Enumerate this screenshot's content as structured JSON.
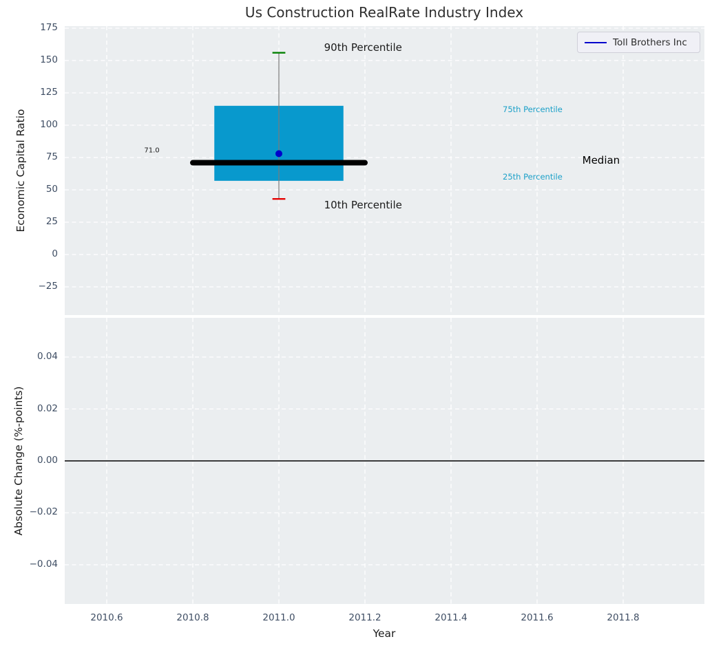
{
  "title": "Us Construction RealRate Industry Index",
  "colors": {
    "figure_bg": "#ffffff",
    "axes_bg": "#ebeef0",
    "grid": "#ffffff",
    "tick_label": "#3e4d63",
    "box_fill": "#0899CD",
    "median_line": "#000000",
    "whisker_line": "#7a7a7a",
    "cap_90th": "#008000",
    "cap_10th": "#e50000",
    "company_point": "#0000cc",
    "percentile_text": "#1BA0C8"
  },
  "chart_data": [
    {
      "type": "box",
      "title": "Us Construction RealRate Industry Index",
      "ylabel": "Economic Capital Ratio",
      "xlabel": "",
      "grid": true,
      "xlim": [
        2010.5024,
        2011.9888
      ],
      "ylim": [
        -46.8,
        176.6
      ],
      "xtick_values": [
        2010.6,
        2010.8,
        2011.0,
        2011.2,
        2011.4,
        2011.6,
        2011.8
      ],
      "xtick_labels": [
        "2010.6",
        "2010.8",
        "2011.0",
        "2011.2",
        "2011.4",
        "2011.6",
        "2011.8"
      ],
      "ytick_values": [
        175,
        150,
        125,
        100,
        75,
        50,
        25,
        0,
        -25
      ],
      "ytick_labels": [
        "175",
        "150",
        "125",
        "100",
        "75",
        "50",
        "25",
        "0",
        "−25"
      ],
      "show_xtick_labels": false,
      "box": {
        "x0": 2010.85,
        "x1": 2011.15,
        "p25": 57,
        "p75": 115,
        "fill": "#0899CD"
      },
      "median": {
        "value": 71.0,
        "label": "71.0",
        "x0": 2010.8,
        "x1": 2011.2,
        "color": "#000000",
        "width": 8
      },
      "whiskers": {
        "x": 2011.0,
        "p10": 43,
        "p90": 156,
        "line_color": "#7a7a7a",
        "cap_half_width": 0.015,
        "cap_top_color": "#008000",
        "cap_bottom_color": "#e50000"
      },
      "point": {
        "label": "Toll Brothers Inc",
        "x": 2011.0,
        "y": 78,
        "color": "#0000cc",
        "radius": 5
      },
      "annotations": [
        {
          "name": "annotation-90th-percentile",
          "text": "90th Percentile",
          "x": 2011.105,
          "y": 160.0,
          "size": 15,
          "color": "#1a1a1a"
        },
        {
          "name": "annotation-10th-percentile",
          "text": "10th Percentile",
          "x": 2011.105,
          "y": 38.5,
          "size": 15,
          "color": "#1a1a1a"
        },
        {
          "name": "annotation-75th-percentile",
          "text": "75th Percentile",
          "x": 2011.52,
          "y": 112.0,
          "size": 11.5,
          "color": "#1BA0C8"
        },
        {
          "name": "annotation-25th-percentile",
          "text": "25th Percentile",
          "x": 2011.52,
          "y": 60.0,
          "size": 11.5,
          "color": "#1BA0C8"
        },
        {
          "name": "annotation-median",
          "text": "Median",
          "x": 2011.705,
          "y": 73.0,
          "size": 15,
          "color": "#000000"
        },
        {
          "name": "annotation-median-value",
          "text": "71.0",
          "x": 2010.687,
          "y": 80.3,
          "size": 10,
          "color": "#1a1a1a"
        }
      ],
      "legend": {
        "label": "Toll Brothers Inc",
        "line_color": "#0000cc",
        "position": "upper right"
      }
    },
    {
      "type": "line",
      "ylabel": "Absolute Change (%-points)",
      "xlabel": "Year",
      "grid": true,
      "xlim": [
        2010.5024,
        2011.9888
      ],
      "ylim": [
        -0.0551,
        0.0551
      ],
      "xtick_values": [
        2010.6,
        2010.8,
        2011.0,
        2011.2,
        2011.4,
        2011.6,
        2011.8
      ],
      "xtick_labels": [
        "2010.6",
        "2010.8",
        "2011.0",
        "2011.2",
        "2011.4",
        "2011.6",
        "2011.8"
      ],
      "ytick_values": [
        0.04,
        0.02,
        0.0,
        -0.02,
        -0.04
      ],
      "ytick_labels": [
        "0.04",
        "0.02",
        "0.00",
        "−0.02",
        "−0.04"
      ],
      "show_xtick_labels": true,
      "zero_line": {
        "y": 0.0,
        "color": "#000000",
        "width": 1.4
      },
      "series": []
    }
  ]
}
